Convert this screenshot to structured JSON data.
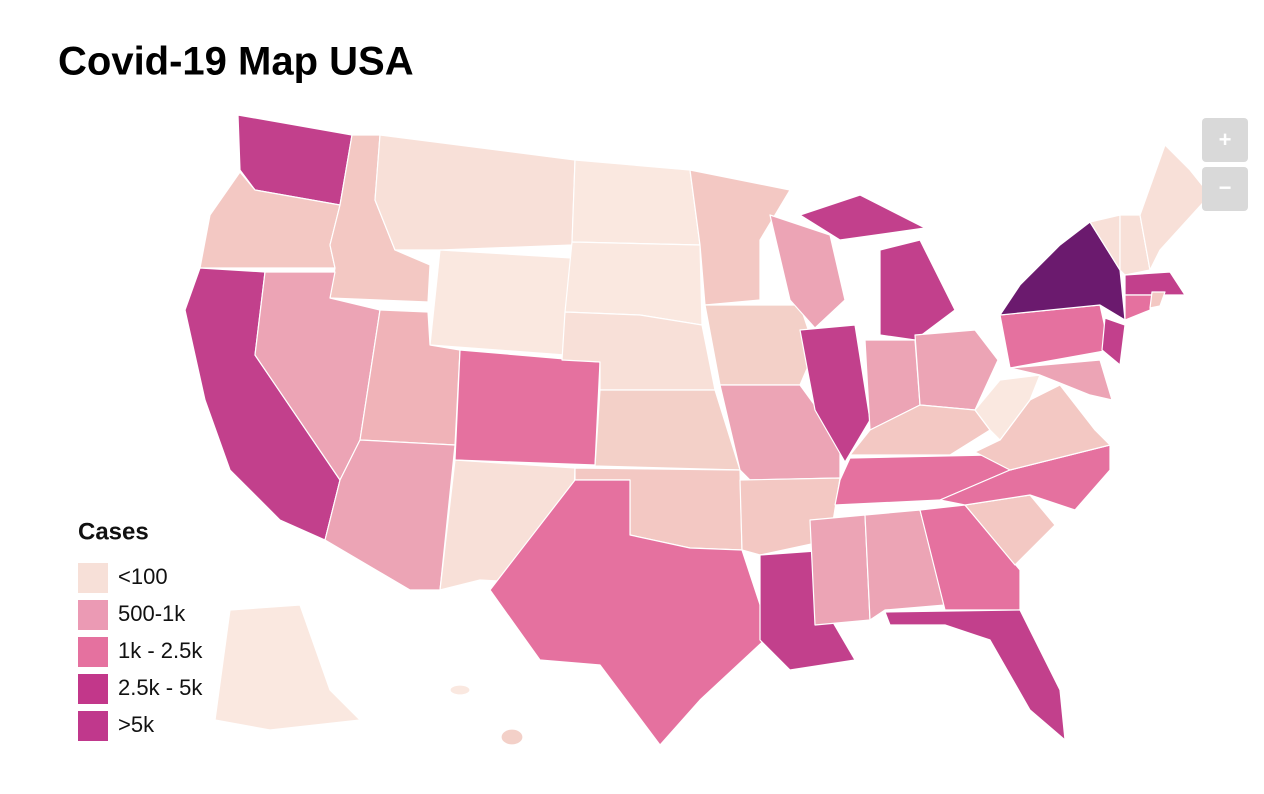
{
  "header": {
    "title": "Covid-19 Map USA"
  },
  "zoom_controls": [
    "+",
    "−"
  ],
  "legend": {
    "title": "Cases",
    "items": [
      {
        "label": "<100",
        "color": "#f7e0d8"
      },
      {
        "label": "500-1k",
        "color": "#eb9ab4"
      },
      {
        "label": "1k - 2.5k",
        "color": "#e5719f"
      },
      {
        "label": "2.5k - 5k",
        "color": "#c2378a"
      },
      {
        "label": ">5k",
        "color": "#c0388c"
      }
    ]
  }
}
